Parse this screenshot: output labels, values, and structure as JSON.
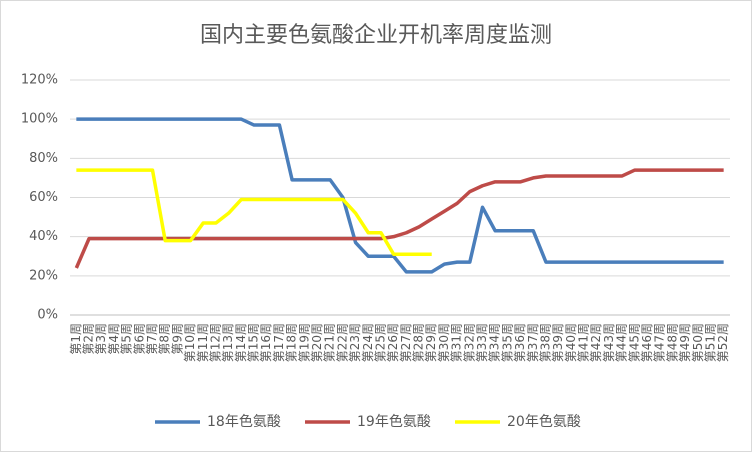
{
  "chart_data": {
    "type": "line",
    "title": "国内主要色氨酸企业开机率周度监测",
    "categories": [
      "第1周",
      "第2周",
      "第3周",
      "第4周",
      "第5周",
      "第6周",
      "第7周",
      "第8周",
      "第9周",
      "第10周",
      "第11周",
      "第12周",
      "第13周",
      "第14周",
      "第15周",
      "第16周",
      "第17周",
      "第18周",
      "第19周",
      "第20周",
      "第21周",
      "第22周",
      "第23周",
      "第24周",
      "第25周",
      "第26周",
      "第27周",
      "第28周",
      "第29周",
      "第30周",
      "第31周",
      "第32周",
      "第33周",
      "第34周",
      "第35周",
      "第36周",
      "第37周",
      "第38周",
      "第39周",
      "第40周",
      "第41周",
      "第42周",
      "第43周",
      "第44周",
      "第45周",
      "第46周",
      "第47周",
      "第48周",
      "第49周",
      "第50周",
      "第51周",
      "第52周"
    ],
    "series": [
      {
        "name": "18年色氨酸",
        "color": "#4a7ebb",
        "values": [
          100,
          100,
          100,
          100,
          100,
          100,
          100,
          100,
          100,
          100,
          100,
          100,
          100,
          100,
          97,
          97,
          97,
          69,
          69,
          69,
          69,
          60,
          37,
          30,
          30,
          30,
          22,
          22,
          22,
          26,
          27,
          27,
          55,
          43,
          43,
          43,
          43,
          27,
          27,
          27,
          27,
          27,
          27,
          27,
          27,
          27,
          27,
          27,
          27,
          27,
          27,
          27
        ]
      },
      {
        "name": "19年色氨酸",
        "color": "#be4b48",
        "values": [
          24,
          39,
          39,
          39,
          39,
          39,
          39,
          39,
          39,
          39,
          39,
          39,
          39,
          39,
          39,
          39,
          39,
          39,
          39,
          39,
          39,
          39,
          39,
          39,
          39,
          40,
          42,
          45,
          49,
          53,
          57,
          63,
          66,
          68,
          68,
          68,
          70,
          71,
          71,
          71,
          71,
          71,
          71,
          71,
          74,
          74,
          74,
          74,
          74,
          74,
          74,
          74
        ]
      },
      {
        "name": "20年色氨酸",
        "color": "#ffff00",
        "values": [
          74,
          74,
          74,
          74,
          74,
          74,
          74,
          38,
          38,
          38,
          47,
          47,
          52,
          59,
          59,
          59,
          59,
          59,
          59,
          59,
          59,
          59,
          52,
          42,
          42,
          31,
          31,
          31,
          31,
          null,
          null,
          null,
          null,
          null,
          null,
          null,
          null,
          null,
          null,
          null,
          null,
          null,
          null,
          null,
          null,
          null,
          null,
          null,
          null,
          null,
          null,
          null
        ]
      }
    ],
    "ylim": [
      0,
      120
    ],
    "yticks": [
      {
        "value": 0,
        "label": "0%"
      },
      {
        "value": 20,
        "label": "20%"
      },
      {
        "value": 40,
        "label": "40%"
      },
      {
        "value": 60,
        "label": "60%"
      },
      {
        "value": 80,
        "label": "80%"
      },
      {
        "value": 100,
        "label": "100%"
      },
      {
        "value": 120,
        "label": "120%"
      }
    ],
    "grid": true,
    "legend": "bottom"
  }
}
